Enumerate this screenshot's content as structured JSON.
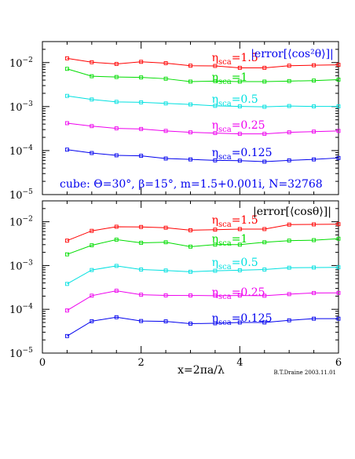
{
  "chart_data": [
    {
      "type": "line",
      "title": "|error[⟨cos²θ⟩]|",
      "annotation": "cube:   Θ=30°,  β=15°,  m=1.5+0.001i,  N=32768",
      "xlim": [
        0,
        6
      ],
      "ylim": [
        1e-05,
        0.03
      ],
      "yscale": "log",
      "x": [
        0.5,
        1.0,
        1.5,
        2.0,
        2.5,
        3.0,
        3.5,
        4.0,
        4.5,
        5.0,
        5.5,
        6.0
      ],
      "series": [
        {
          "name": "ηsca=1.5",
          "label_main": "η",
          "label_sub": "sca",
          "label_value": "=1.5",
          "color": "#ff0000",
          "values": [
            0.0125,
            0.0102,
            0.0093,
            0.0104,
            0.0097,
            0.0085,
            0.0084,
            0.0076,
            0.0076,
            0.0085,
            0.0087,
            0.0089
          ]
        },
        {
          "name": "ηsca=1",
          "label_main": "η",
          "label_sub": "sca",
          "label_value": "=1",
          "color": "#00dd00",
          "values": [
            0.0072,
            0.0049,
            0.0047,
            0.0046,
            0.0043,
            0.0037,
            0.0038,
            0.0037,
            0.0037,
            0.0038,
            0.0039,
            0.0041
          ]
        },
        {
          "name": "ηsca=0.5",
          "label_main": "η",
          "label_sub": "sca",
          "label_value": "=0.5",
          "color": "#00e0e0",
          "values": [
            0.00175,
            0.00145,
            0.00128,
            0.00125,
            0.00118,
            0.00112,
            0.00104,
            0.00101,
            0.00099,
            0.00103,
            0.00101,
            0.00101
          ]
        },
        {
          "name": "ηsca=0.25",
          "label_main": "η",
          "label_sub": "sca",
          "label_value": "=0.25",
          "color": "#ee00ee",
          "values": [
            0.00042,
            0.00036,
            0.00032,
            0.00031,
            0.00028,
            0.00026,
            0.00025,
            0.00024,
            0.00024,
            0.00026,
            0.00027,
            0.00028
          ]
        },
        {
          "name": "ηsca=0.125",
          "label_main": "η",
          "label_sub": "sca",
          "label_value": "=0.125",
          "color": "#0000ee",
          "values": [
            0.000105,
            8.8e-05,
            7.8e-05,
            7.6e-05,
            6.6e-05,
            6.3e-05,
            6e-05,
            5.9e-05,
            5.6e-05,
            6e-05,
            6.3e-05,
            6.8e-05
          ]
        }
      ]
    },
    {
      "type": "line",
      "title": "|error[⟨cosθ⟩]|",
      "xlabel": "x=2πa/λ",
      "xlim": [
        0,
        6
      ],
      "ylim": [
        1e-05,
        0.03
      ],
      "yscale": "log",
      "x": [
        0.5,
        1.0,
        1.5,
        2.0,
        2.5,
        3.0,
        3.5,
        4.0,
        4.5,
        5.0,
        5.5,
        6.0
      ],
      "series": [
        {
          "name": "ηsca=1.5",
          "label_main": "η",
          "label_sub": "sca",
          "label_value": "=1.5",
          "color": "#ff0000",
          "values": [
            0.0037,
            0.0062,
            0.0077,
            0.0076,
            0.0073,
            0.0064,
            0.0066,
            0.0068,
            0.0068,
            0.0086,
            0.0087,
            0.0088
          ]
        },
        {
          "name": "ηsca=1",
          "label_main": "η",
          "label_sub": "sca",
          "label_value": "=1",
          "color": "#00dd00",
          "values": [
            0.0018,
            0.0029,
            0.0039,
            0.0033,
            0.0034,
            0.0027,
            0.003,
            0.003,
            0.0034,
            0.0037,
            0.0038,
            0.0041
          ]
        },
        {
          "name": "ηsca=0.5",
          "label_main": "η",
          "label_sub": "sca",
          "label_value": "=0.5",
          "color": "#00e0e0",
          "values": [
            0.00038,
            0.00079,
            0.00098,
            0.00081,
            0.00077,
            0.00072,
            0.00076,
            0.00078,
            0.00081,
            0.00089,
            0.0009,
            0.00091
          ]
        },
        {
          "name": "ηsca=0.25",
          "label_main": "η",
          "label_sub": "sca",
          "label_value": "=0.25",
          "color": "#ee00ee",
          "values": [
            9.4e-05,
            0.000205,
            0.000265,
            0.000215,
            0.000208,
            0.000207,
            0.000205,
            0.000207,
            0.000204,
            0.000222,
            0.000236,
            0.000237
          ]
        },
        {
          "name": "ηsca=0.125",
          "label_main": "η",
          "label_sub": "sca",
          "label_value": "=0.125",
          "color": "#0000ee",
          "values": [
            2.45e-05,
            5.35e-05,
            6.6e-05,
            5.4e-05,
            5.3e-05,
            4.7e-05,
            4.8e-05,
            5e-05,
            5e-05,
            5.6e-05,
            6.1e-05,
            6.1e-05
          ]
        }
      ]
    }
  ],
  "x_ticks": [
    "0",
    "2",
    "4",
    "6"
  ],
  "y_ticks": [
    {
      "base": "10",
      "exp": "−2",
      "value": 0.01
    },
    {
      "base": "10",
      "exp": "−3",
      "value": 0.001
    },
    {
      "base": "10",
      "exp": "−4",
      "value": 0.0001
    },
    {
      "base": "10",
      "exp": "−5",
      "value": 1e-05
    }
  ],
  "credit": "B.T.Draine 2003.11.01"
}
